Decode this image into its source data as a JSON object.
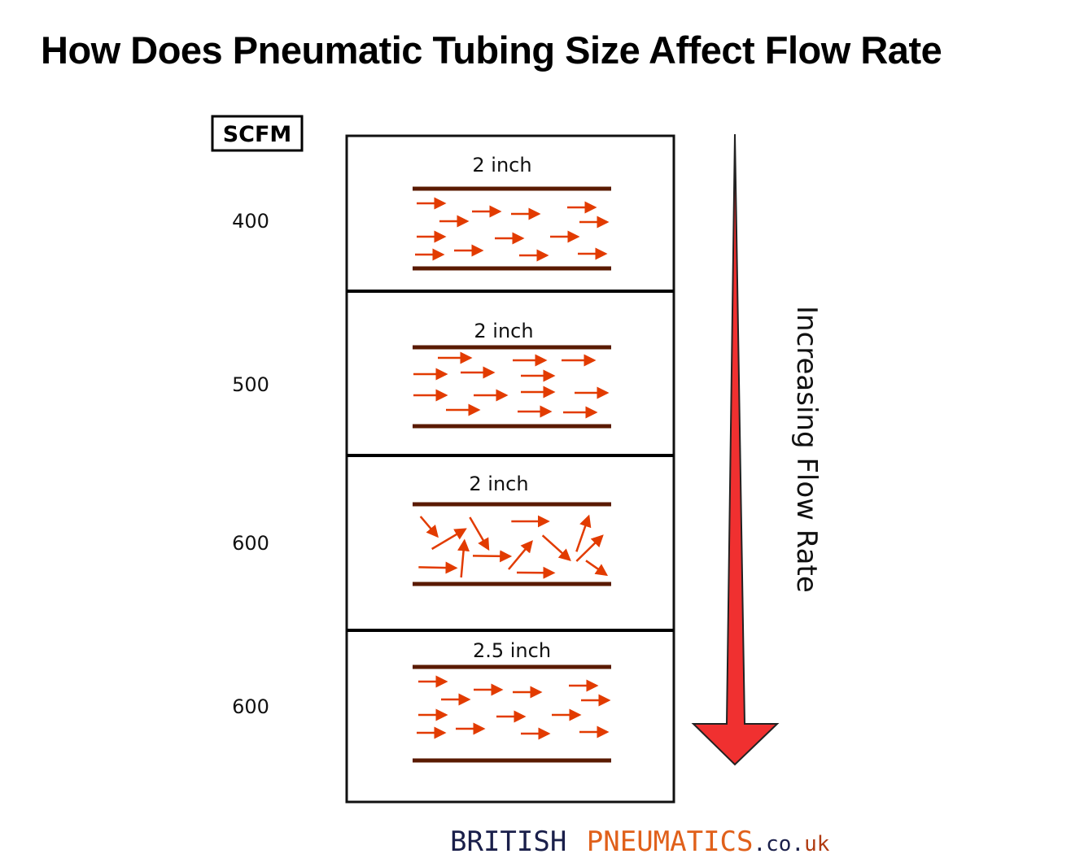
{
  "title": "How Does Pneumatic Tubing Size Affect Flow Rate",
  "unit_label": "SCFM",
  "rows": [
    {
      "scfm": "400",
      "size": "2 inch",
      "flow": "laminar"
    },
    {
      "scfm": "500",
      "size": "2 inch",
      "flow": "laminar"
    },
    {
      "scfm": "600",
      "size": "2 inch",
      "flow": "turbulent"
    },
    {
      "scfm": "600",
      "size": "2.5 inch",
      "flow": "laminar"
    }
  ],
  "arrow_label": "Increasing Flow Rate",
  "logo": {
    "part1": "BRITISH",
    "part2": "PNEUMATICS",
    "part3": ".co.",
    "part4": "uk"
  },
  "colors": {
    "pipe": "#5a1a00",
    "flow_arrow": "#e23b00",
    "big_arrow": "#f03030",
    "logo_dark": "#1a1f4a",
    "logo_orange": "#e0601a"
  }
}
